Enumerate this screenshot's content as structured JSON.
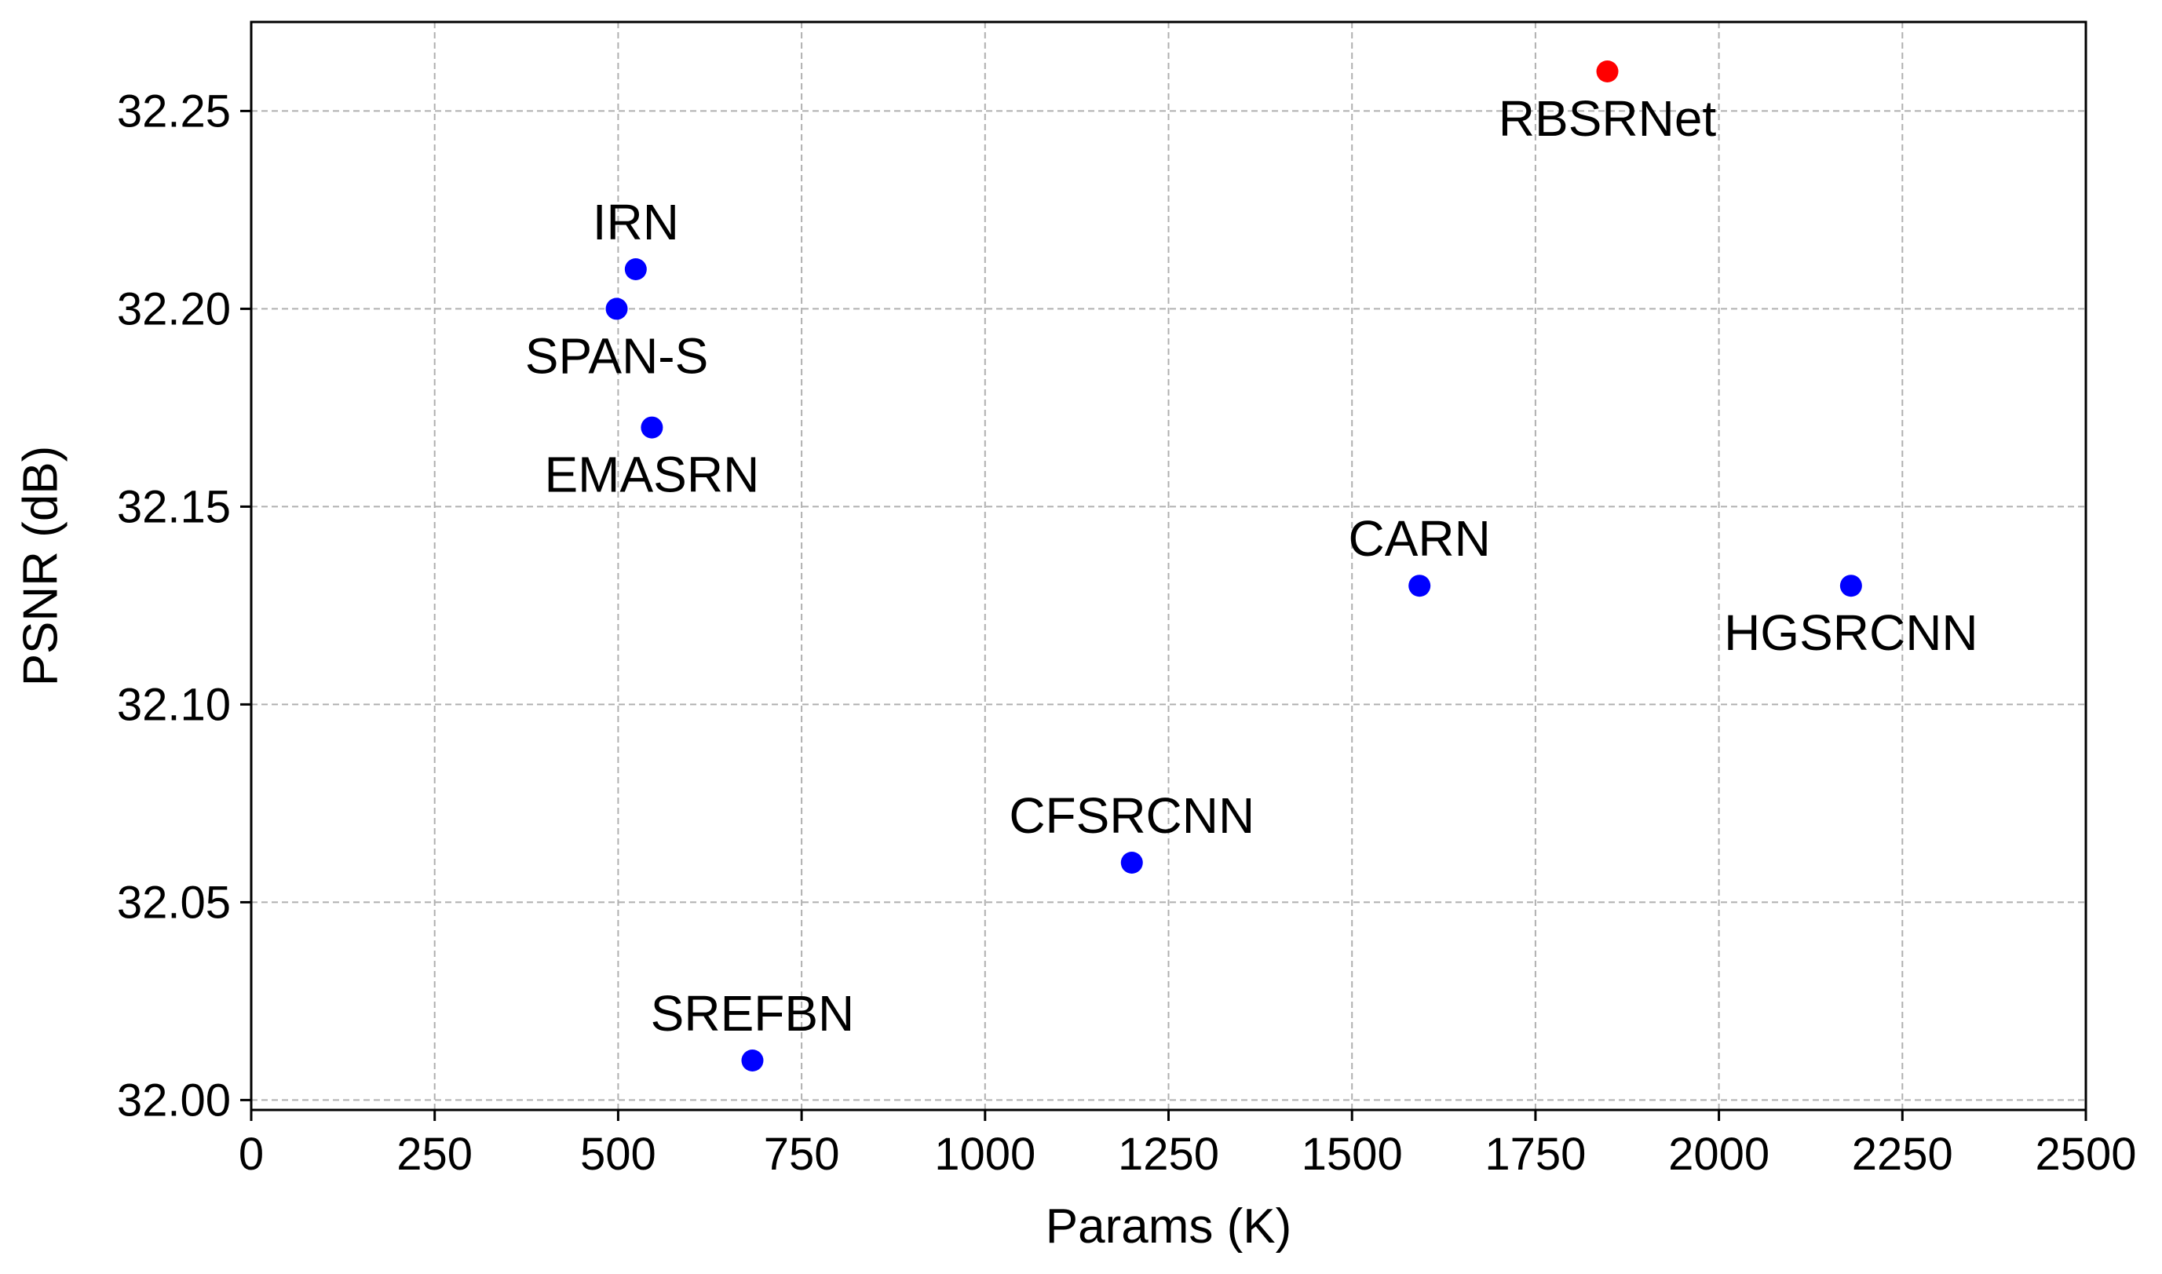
{
  "chart_data": {
    "type": "scatter",
    "title": "",
    "xlabel": "Params (K)",
    "ylabel": "PSNR (dB)",
    "xlim": [
      0,
      2500
    ],
    "ylim": [
      31.9975,
      32.2725
    ],
    "xticks": [
      0,
      250,
      500,
      750,
      1000,
      1250,
      1500,
      1750,
      2000,
      2250,
      2500
    ],
    "yticks": [
      32.0,
      32.05,
      32.1,
      32.15,
      32.2,
      32.25
    ],
    "xtick_labels": [
      "0",
      "250",
      "500",
      "750",
      "1000",
      "1250",
      "1500",
      "1750",
      "2000",
      "2250",
      "2500"
    ],
    "ytick_labels": [
      "32.00",
      "32.05",
      "32.10",
      "32.15",
      "32.20",
      "32.25"
    ],
    "grid": true,
    "points": [
      {
        "label": "RBSRNet",
        "x": 1848,
        "y": 32.26,
        "color": "#ff0000",
        "label_pos": "below"
      },
      {
        "label": "IRN",
        "x": 524,
        "y": 32.21,
        "color": "#0000ff",
        "label_pos": "above"
      },
      {
        "label": "SPAN-S",
        "x": 498,
        "y": 32.2,
        "color": "#0000ff",
        "label_pos": "below"
      },
      {
        "label": "EMASRN",
        "x": 546,
        "y": 32.17,
        "color": "#0000ff",
        "label_pos": "below"
      },
      {
        "label": "CARN",
        "x": 1592,
        "y": 32.13,
        "color": "#0000ff",
        "label_pos": "above"
      },
      {
        "label": "HGSRCNN",
        "x": 2180,
        "y": 32.13,
        "color": "#0000ff",
        "label_pos": "below"
      },
      {
        "label": "CFSRCNN",
        "x": 1200,
        "y": 32.06,
        "color": "#0000ff",
        "label_pos": "above"
      },
      {
        "label": "SREFBN",
        "x": 683,
        "y": 32.01,
        "color": "#0000ff",
        "label_pos": "above"
      }
    ]
  }
}
